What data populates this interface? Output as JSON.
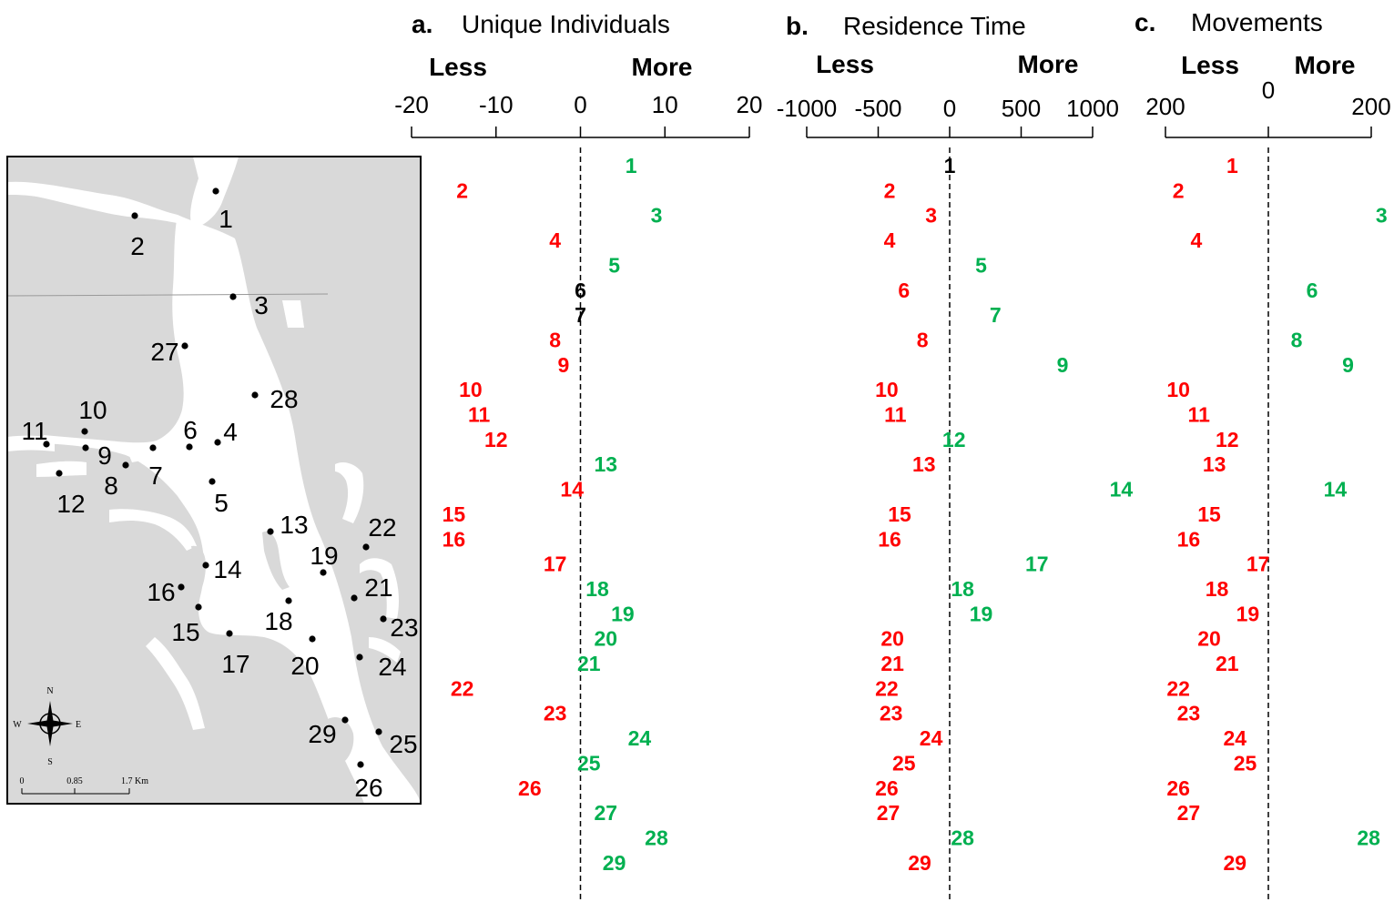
{
  "colors": {
    "less": "#ff0000",
    "more": "#00b050",
    "neutral": "#000000",
    "land": "#d9d9d9",
    "water": "#ffffff"
  },
  "direction_labels": {
    "less": "Less",
    "more": "More"
  },
  "map": {
    "compass": {
      "n": "N",
      "s": "S",
      "e": "E",
      "w": "W"
    },
    "scale": {
      "labels": [
        "0",
        "0.85",
        "1.7 Km"
      ]
    },
    "sites": [
      "1",
      "2",
      "3",
      "4",
      "5",
      "6",
      "7",
      "8",
      "9",
      "10",
      "11",
      "12",
      "13",
      "14",
      "15",
      "16",
      "17",
      "18",
      "19",
      "20",
      "21",
      "22",
      "23",
      "24",
      "25",
      "26",
      "27",
      "28",
      "29"
    ]
  },
  "chart_data": [
    {
      "type": "scatter",
      "letter": "a.",
      "title": "Unique Individuals",
      "xlim": [
        -20,
        20
      ],
      "ticks": [
        -20,
        -10,
        0,
        10,
        20
      ],
      "tick_labels": [
        "-20",
        "-10",
        "0",
        "10",
        "20"
      ],
      "points": [
        {
          "site": "1",
          "value": 6,
          "status": "more"
        },
        {
          "site": "2",
          "value": -14,
          "status": "less"
        },
        {
          "site": "3",
          "value": 9,
          "status": "more"
        },
        {
          "site": "4",
          "value": -3,
          "status": "less"
        },
        {
          "site": "5",
          "value": 4,
          "status": "more"
        },
        {
          "site": "6",
          "value": 0,
          "status": "neutral"
        },
        {
          "site": "7",
          "value": 0,
          "status": "neutral"
        },
        {
          "site": "8",
          "value": -3,
          "status": "less"
        },
        {
          "site": "9",
          "value": -2,
          "status": "less"
        },
        {
          "site": "10",
          "value": -13,
          "status": "less"
        },
        {
          "site": "11",
          "value": -12,
          "status": "less"
        },
        {
          "site": "12",
          "value": -10,
          "status": "less"
        },
        {
          "site": "13",
          "value": 3,
          "status": "more"
        },
        {
          "site": "14",
          "value": -1,
          "status": "less"
        },
        {
          "site": "15",
          "value": -15,
          "status": "less"
        },
        {
          "site": "16",
          "value": -15,
          "status": "less"
        },
        {
          "site": "17",
          "value": -3,
          "status": "less"
        },
        {
          "site": "18",
          "value": 2,
          "status": "more"
        },
        {
          "site": "19",
          "value": 5,
          "status": "more"
        },
        {
          "site": "20",
          "value": 3,
          "status": "more"
        },
        {
          "site": "21",
          "value": 1,
          "status": "more"
        },
        {
          "site": "22",
          "value": -14,
          "status": "less"
        },
        {
          "site": "23",
          "value": -3,
          "status": "less"
        },
        {
          "site": "24",
          "value": 7,
          "status": "more"
        },
        {
          "site": "25",
          "value": 1,
          "status": "more"
        },
        {
          "site": "26",
          "value": -6,
          "status": "less"
        },
        {
          "site": "27",
          "value": 3,
          "status": "more"
        },
        {
          "site": "28",
          "value": 9,
          "status": "more"
        },
        {
          "site": "29",
          "value": 4,
          "status": "more"
        }
      ]
    },
    {
      "type": "scatter",
      "letter": "b.",
      "title": "Residence Time",
      "xlim": [
        -1000,
        1000
      ],
      "ticks": [
        -1000,
        -500,
        0,
        500,
        1000
      ],
      "tick_labels": [
        "-1000",
        "-500",
        "0",
        "500",
        "1000"
      ],
      "points": [
        {
          "site": "1",
          "value": 0,
          "status": "neutral"
        },
        {
          "site": "2",
          "value": -420,
          "status": "less"
        },
        {
          "site": "3",
          "value": -130,
          "status": "less"
        },
        {
          "site": "4",
          "value": -420,
          "status": "less"
        },
        {
          "site": "5",
          "value": 220,
          "status": "more"
        },
        {
          "site": "6",
          "value": -320,
          "status": "less"
        },
        {
          "site": "7",
          "value": 320,
          "status": "more"
        },
        {
          "site": "8",
          "value": -190,
          "status": "less"
        },
        {
          "site": "9",
          "value": 790,
          "status": "more"
        },
        {
          "site": "10",
          "value": -440,
          "status": "less"
        },
        {
          "site": "11",
          "value": -380,
          "status": "less"
        },
        {
          "site": "12",
          "value": 30,
          "status": "more"
        },
        {
          "site": "13",
          "value": -180,
          "status": "less"
        },
        {
          "site": "14",
          "value": 1200,
          "status": "more"
        },
        {
          "site": "15",
          "value": -350,
          "status": "less"
        },
        {
          "site": "16",
          "value": -420,
          "status": "less"
        },
        {
          "site": "17",
          "value": 610,
          "status": "more"
        },
        {
          "site": "18",
          "value": 90,
          "status": "more"
        },
        {
          "site": "19",
          "value": 220,
          "status": "more"
        },
        {
          "site": "20",
          "value": -400,
          "status": "less"
        },
        {
          "site": "21",
          "value": -400,
          "status": "less"
        },
        {
          "site": "22",
          "value": -440,
          "status": "less"
        },
        {
          "site": "23",
          "value": -410,
          "status": "less"
        },
        {
          "site": "24",
          "value": -130,
          "status": "less"
        },
        {
          "site": "25",
          "value": -320,
          "status": "less"
        },
        {
          "site": "26",
          "value": -440,
          "status": "less"
        },
        {
          "site": "27",
          "value": -430,
          "status": "less"
        },
        {
          "site": "28",
          "value": 90,
          "status": "more"
        },
        {
          "site": "29",
          "value": -210,
          "status": "less"
        }
      ]
    },
    {
      "type": "scatter",
      "letter": "c.",
      "title": "Movements",
      "xlim": [
        -200,
        200
      ],
      "ticks": [
        -200,
        0,
        200
      ],
      "tick_labels": [
        "200",
        "0",
        "200"
      ],
      "points": [
        {
          "site": "1",
          "value": -70,
          "status": "less"
        },
        {
          "site": "2",
          "value": -175,
          "status": "less"
        },
        {
          "site": "3",
          "value": 220,
          "status": "more"
        },
        {
          "site": "4",
          "value": -140,
          "status": "less"
        },
        {
          "site": "6",
          "value": 85,
          "status": "more"
        },
        {
          "site": "8",
          "value": 55,
          "status": "more"
        },
        {
          "site": "9",
          "value": 155,
          "status": "more"
        },
        {
          "site": "10",
          "value": -175,
          "status": "less"
        },
        {
          "site": "11",
          "value": -135,
          "status": "less"
        },
        {
          "site": "12",
          "value": -80,
          "status": "less"
        },
        {
          "site": "13",
          "value": -105,
          "status": "less"
        },
        {
          "site": "14",
          "value": 130,
          "status": "more"
        },
        {
          "site": "15",
          "value": -115,
          "status": "less"
        },
        {
          "site": "16",
          "value": -155,
          "status": "less"
        },
        {
          "site": "17",
          "value": -20,
          "status": "less"
        },
        {
          "site": "18",
          "value": -100,
          "status": "less"
        },
        {
          "site": "19",
          "value": -40,
          "status": "less"
        },
        {
          "site": "20",
          "value": -115,
          "status": "less"
        },
        {
          "site": "21",
          "value": -80,
          "status": "less"
        },
        {
          "site": "22",
          "value": -175,
          "status": "less"
        },
        {
          "site": "23",
          "value": -155,
          "status": "less"
        },
        {
          "site": "24",
          "value": -65,
          "status": "less"
        },
        {
          "site": "25",
          "value": -45,
          "status": "less"
        },
        {
          "site": "26",
          "value": -175,
          "status": "less"
        },
        {
          "site": "27",
          "value": -155,
          "status": "less"
        },
        {
          "site": "28",
          "value": 195,
          "status": "more"
        },
        {
          "site": "29",
          "value": -65,
          "status": "less"
        }
      ]
    }
  ]
}
